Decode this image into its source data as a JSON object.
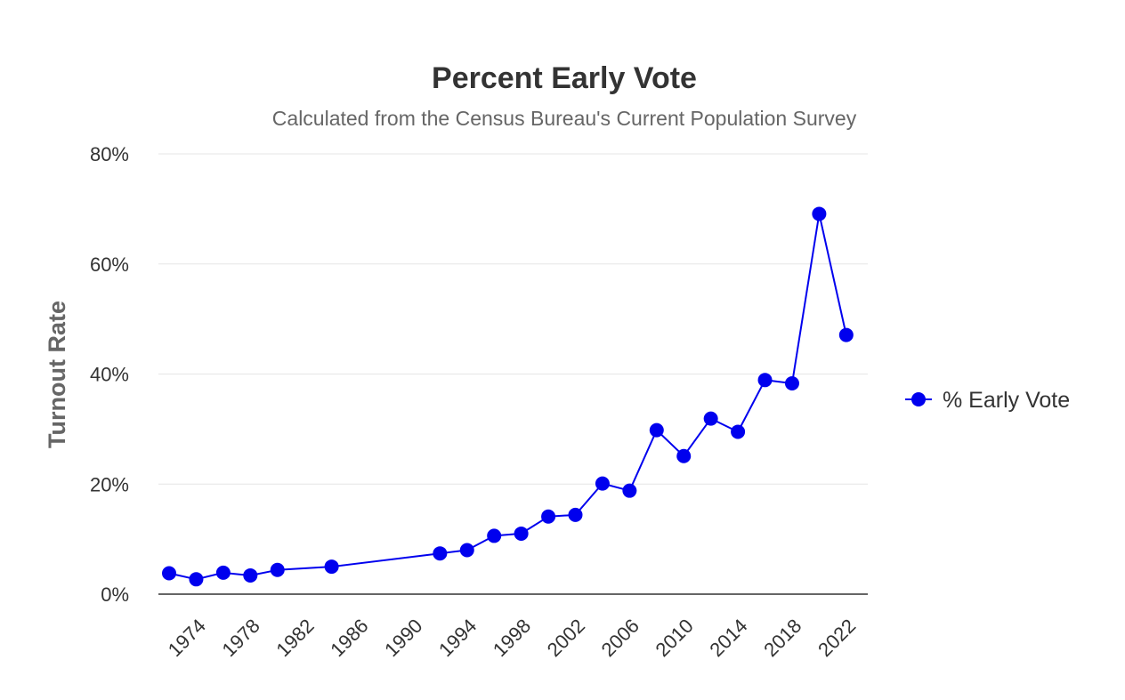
{
  "chart_data": {
    "type": "line",
    "title": "Percent Early Vote",
    "subtitle": "Calculated from the Census Bureau's Current Population Survey",
    "ylabel": "Turnout Rate",
    "xlabel": "",
    "ylim": [
      0,
      80
    ],
    "yticks": [
      "0%",
      "20%",
      "40%",
      "60%",
      "80%"
    ],
    "xlim": [
      1972,
      2022.8
    ],
    "xticks": [
      "1974",
      "1978",
      "1982",
      "1986",
      "1990",
      "1994",
      "1998",
      "2002",
      "2006",
      "2010",
      "2014",
      "2018",
      "2022"
    ],
    "grid": true,
    "legend_position": "right",
    "series": [
      {
        "name": "% Early Vote",
        "color": "#0000ee",
        "x": [
          1972,
          1974,
          1976,
          1978,
          1980,
          1984,
          1992,
          1994,
          1996,
          1998,
          2000,
          2002,
          2004,
          2006,
          2008,
          2010,
          2012,
          2014,
          2016,
          2018,
          2020,
          2022
        ],
        "values": [
          3.8,
          2.7,
          3.9,
          3.4,
          4.4,
          5.0,
          7.4,
          8.0,
          10.6,
          11.0,
          14.1,
          14.4,
          20.1,
          18.8,
          29.8,
          25.1,
          31.9,
          29.5,
          38.9,
          38.3,
          69.1,
          47.1
        ]
      }
    ]
  }
}
